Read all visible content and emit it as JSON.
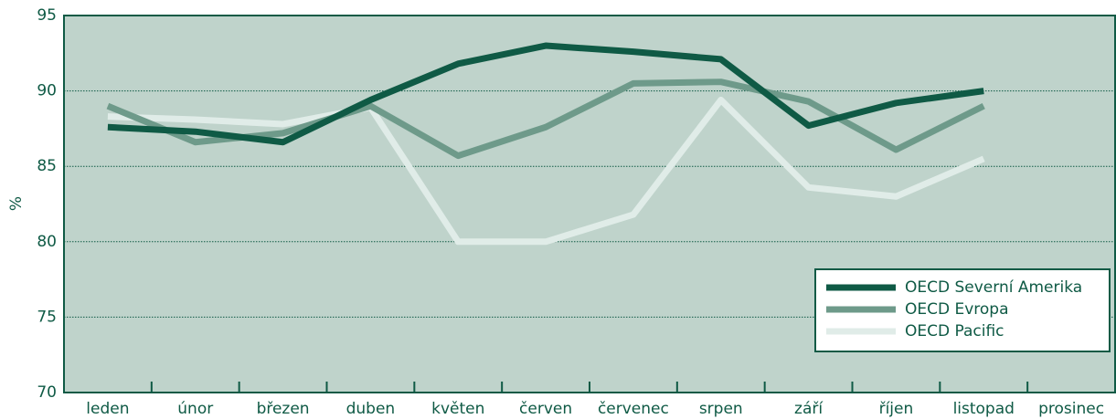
{
  "chart_data": {
    "type": "line",
    "ylabel": "%",
    "categories": [
      "leden",
      "únor",
      "březen",
      "duben",
      "květen",
      "červen",
      "červenec",
      "srpen",
      "září",
      "říjen",
      "listopad",
      "prosinec"
    ],
    "series": [
      {
        "name": "OECD Severní Amerika",
        "color": "#0f5a45",
        "values": [
          87.6,
          87.3,
          86.6,
          89.4,
          91.8,
          93.0,
          92.6,
          92.1,
          87.7,
          89.2,
          90.0,
          null
        ]
      },
      {
        "name": "OECD Evropa",
        "color": "#6e9a8a",
        "values": [
          89.0,
          86.6,
          87.2,
          89.0,
          85.7,
          87.6,
          90.5,
          90.6,
          89.3,
          86.1,
          89.0,
          null
        ]
      },
      {
        "name": "OECD Pacific",
        "color": "#e0ece8",
        "values": [
          88.3,
          88.1,
          87.8,
          88.9,
          80.0,
          80.0,
          81.8,
          89.4,
          83.6,
          83.0,
          85.5,
          null
        ]
      }
    ],
    "ylim": [
      70,
      95
    ],
    "yticks": [
      70,
      75,
      80,
      85,
      90,
      95
    ],
    "grid": true,
    "legend": "lower right"
  }
}
